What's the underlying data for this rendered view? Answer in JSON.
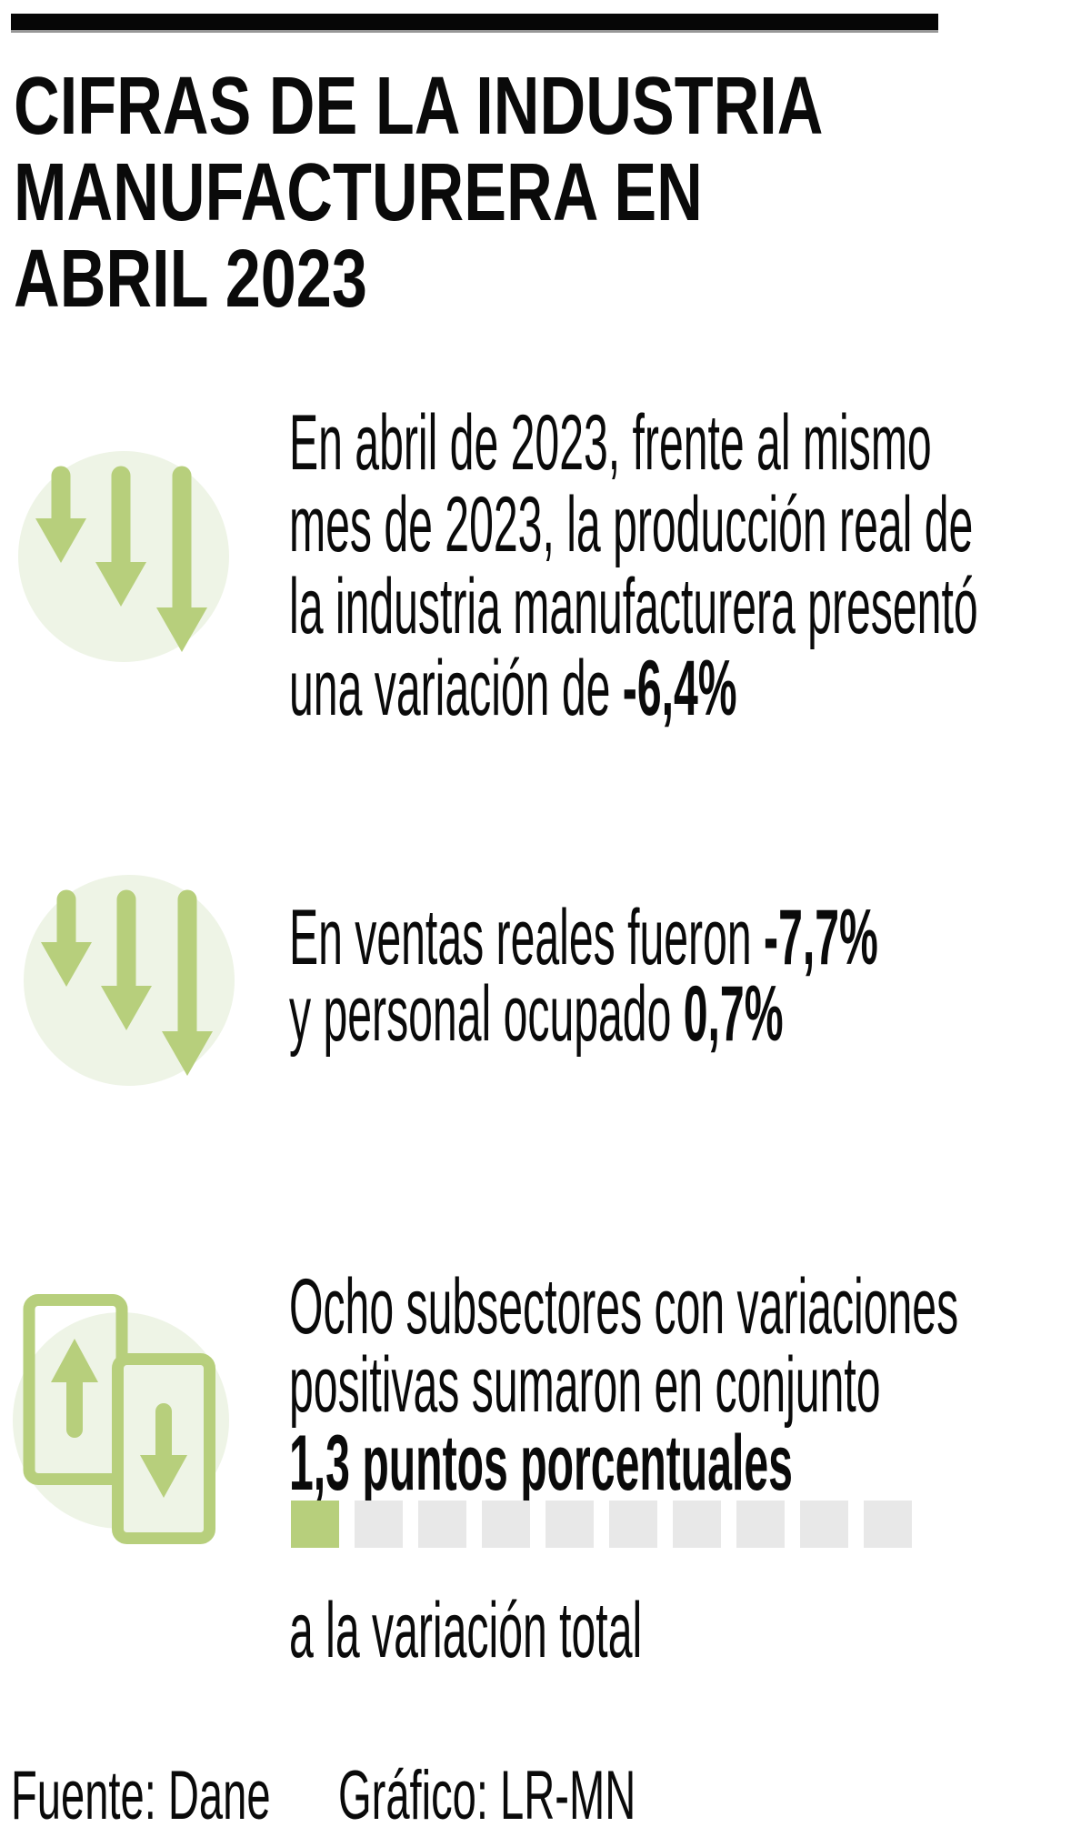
{
  "header": {
    "title_lines": [
      "CIFRAS DE LA INDUSTRIA",
      "MANUFACTURERA EN",
      "ABRIL 2023"
    ]
  },
  "sections": [
    {
      "id": "produccion",
      "icon": "three-down-arrows-icon",
      "lines": [
        [
          {
            "t": "En abril de 2023, frente al mismo"
          }
        ],
        [
          {
            "t": "mes de 2023, la producción real de"
          }
        ],
        [
          {
            "t": "la industria manufacturera presentó"
          }
        ],
        [
          {
            "t": "una variación de "
          },
          {
            "t": "-6,4%",
            "b": true
          }
        ]
      ]
    },
    {
      "id": "ventas-personal",
      "icon": "three-down-arrows-icon",
      "lines": [
        [
          {
            "t": "En ventas reales fueron "
          },
          {
            "t": "-7,7%",
            "b": true
          }
        ],
        [
          {
            "t": "y personal ocupado "
          },
          {
            "t": "0,7%",
            "b": true
          }
        ]
      ]
    },
    {
      "id": "subsectores",
      "icon": "up-down-cards-icon",
      "lines": [
        [
          {
            "t": "Ocho subsectores con variaciones"
          }
        ],
        [
          {
            "t": "positivas sumaron en conjunto"
          }
        ],
        [
          {
            "t": "1,3 puntos porcentuales",
            "b": true
          }
        ]
      ]
    }
  ],
  "variation_note": [
    [
      {
        "t": "a la variación total"
      }
    ]
  ],
  "progress": {
    "filled": 1,
    "total": 10
  },
  "footer": {
    "source_label": "Fuente: Dane",
    "credit_label": "Gráfico: LR-MN"
  },
  "colors": {
    "top_bar": "#060606",
    "text": "#0a0a0a",
    "icon_green": "#b7cf7c",
    "icon_circle_bg": "#eef4e6",
    "progress_empty": "#e8e8e8"
  },
  "chart_data": {
    "type": "bar",
    "title": "Aporte de los subsectores con variación positiva a la variación total",
    "categories": [
      "Subsectores con variaciones positivas (8 subsectores)"
    ],
    "values": [
      1.3
    ],
    "unit": "puntos porcentuales",
    "visual_style": "progress row of 10 squares, 1 filled green of 10",
    "filled_squares": 1,
    "total_squares": 10,
    "key_figures": [
      {
        "label": "Variación producción real industria manufacturera abril 2023",
        "value": "-6,4%"
      },
      {
        "label": "Variación ventas reales",
        "value": "-7,7%"
      },
      {
        "label": "Variación personal ocupado",
        "value": "0,7%"
      },
      {
        "label": "Aporte subsectores positivos a la variación total",
        "value": "1,3 puntos porcentuales"
      }
    ]
  }
}
